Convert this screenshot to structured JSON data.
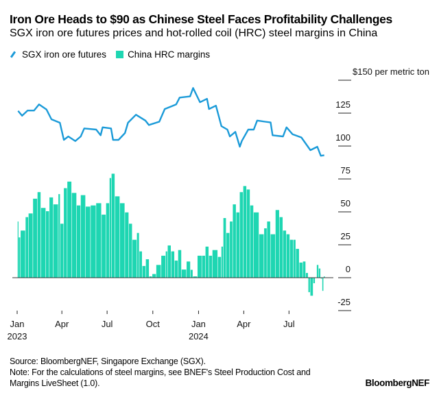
{
  "chart_data": {
    "type": "bar+line",
    "title": "Iron Ore Heads to $90 as Chinese Steel Faces Profitability Challenges",
    "subtitle": "SGX iron ore futures prices and hot-rolled coil (HRC) steel margins in China",
    "ylabel": "$150 per metric ton",
    "ylim": [
      -25,
      150
    ],
    "yticks": [
      150,
      125,
      100,
      75,
      50,
      25,
      0,
      -25
    ],
    "ytick_labels": [
      "$150 per metric ton",
      "125",
      "100",
      "75",
      "50",
      "25",
      "0",
      "-25"
    ],
    "xlim": [
      "2023-01-01",
      "2024-09-30"
    ],
    "xticks": [
      {
        "date": "2023-01-01",
        "label": "Jan",
        "year": "2023"
      },
      {
        "date": "2023-04-01",
        "label": "Apr",
        "year": ""
      },
      {
        "date": "2023-07-01",
        "label": "Jul",
        "year": ""
      },
      {
        "date": "2023-10-01",
        "label": "Oct",
        "year": ""
      },
      {
        "date": "2024-01-01",
        "label": "Jan",
        "year": "2024"
      },
      {
        "date": "2024-04-01",
        "label": "Apr",
        "year": ""
      },
      {
        "date": "2024-07-01",
        "label": "Jul",
        "year": ""
      }
    ],
    "legend_placement": "top-left",
    "grid": false,
    "series": [
      {
        "name": "SGX iron ore futures",
        "type": "line",
        "color": "#1a9ad8",
        "points": [
          [
            "2023-01-03",
            126.7
          ],
          [
            "2023-01-11",
            123
          ],
          [
            "2023-01-22",
            127
          ],
          [
            "2023-02-04",
            127
          ],
          [
            "2023-02-14",
            131.6
          ],
          [
            "2023-03-01",
            127.8
          ],
          [
            "2023-03-11",
            120.3
          ],
          [
            "2023-03-28",
            117.7
          ],
          [
            "2023-04-05",
            104.7
          ],
          [
            "2023-04-14",
            107.3
          ],
          [
            "2023-04-28",
            103.8
          ],
          [
            "2023-05-09",
            107.3
          ],
          [
            "2023-05-16",
            113.4
          ],
          [
            "2023-06-09",
            112.5
          ],
          [
            "2023-06-18",
            108.2
          ],
          [
            "2023-06-22",
            114.2
          ],
          [
            "2023-07-09",
            113.4
          ],
          [
            "2023-07-13",
            104.7
          ],
          [
            "2023-07-24",
            104.7
          ],
          [
            "2023-08-06",
            109.9
          ],
          [
            "2023-08-12",
            117.7
          ],
          [
            "2023-08-28",
            123.8
          ],
          [
            "2023-09-16",
            119.4
          ],
          [
            "2023-09-23",
            116
          ],
          [
            "2023-10-14",
            118.5
          ],
          [
            "2023-10-25",
            128.1
          ],
          [
            "2023-11-17",
            131.6
          ],
          [
            "2023-11-24",
            136.8
          ],
          [
            "2023-12-15",
            137.7
          ],
          [
            "2023-12-21",
            144.1
          ],
          [
            "2024-01-04",
            133.3
          ],
          [
            "2024-01-18",
            135.9
          ],
          [
            "2024-01-22",
            128.1
          ],
          [
            "2024-02-05",
            130.7
          ],
          [
            "2024-02-16",
            115.1
          ],
          [
            "2024-02-28",
            112.5
          ],
          [
            "2024-03-04",
            107.3
          ],
          [
            "2024-03-15",
            110.8
          ],
          [
            "2024-03-24",
            99.5
          ],
          [
            "2024-03-28",
            103.8
          ],
          [
            "2024-04-10",
            112.5
          ],
          [
            "2024-04-21",
            112.5
          ],
          [
            "2024-04-28",
            119.4
          ],
          [
            "2024-05-14",
            118.5
          ],
          [
            "2024-05-25",
            117.9
          ],
          [
            "2024-05-29",
            108.2
          ],
          [
            "2024-06-19",
            107.3
          ],
          [
            "2024-06-26",
            114.2
          ],
          [
            "2024-07-08",
            109
          ],
          [
            "2024-07-26",
            106.5
          ],
          [
            "2024-08-13",
            96.9
          ],
          [
            "2024-08-27",
            99.5
          ],
          [
            "2024-09-03",
            92.6
          ],
          [
            "2024-09-10",
            93
          ]
        ]
      },
      {
        "name": "China HRC margins",
        "type": "bar",
        "color": "#1ed6b2",
        "points": [
          [
            "2023-01-02",
            42.7
          ],
          [
            "2023-01-04",
            30.6
          ],
          [
            "2023-01-08",
            35.8
          ],
          [
            "2023-01-18",
            46
          ],
          [
            "2023-01-24",
            48.8
          ],
          [
            "2023-02-02",
            60
          ],
          [
            "2023-02-11",
            65
          ],
          [
            "2023-02-18",
            53
          ],
          [
            "2023-02-28",
            50.5
          ],
          [
            "2023-03-07",
            61
          ],
          [
            "2023-03-15",
            55.7
          ],
          [
            "2023-03-25",
            63.5
          ],
          [
            "2023-03-29",
            41
          ],
          [
            "2023-04-05",
            68
          ],
          [
            "2023-04-12",
            73
          ],
          [
            "2023-04-21",
            64.4
          ],
          [
            "2023-05-01",
            54.9
          ],
          [
            "2023-05-09",
            62.7
          ],
          [
            "2023-05-19",
            54
          ],
          [
            "2023-05-29",
            54.9
          ],
          [
            "2023-06-09",
            56.6
          ],
          [
            "2023-06-20",
            47.9
          ],
          [
            "2023-06-29",
            56.6
          ],
          [
            "2023-07-06",
            75.7
          ],
          [
            "2023-07-10",
            79
          ],
          [
            "2023-07-17",
            61.8
          ],
          [
            "2023-07-27",
            56.6
          ],
          [
            "2023-08-06",
            49.6
          ],
          [
            "2023-08-14",
            41
          ],
          [
            "2023-08-21",
            28.8
          ],
          [
            "2023-08-30",
            34
          ],
          [
            "2023-09-04",
            20
          ],
          [
            "2023-09-10",
            8.9
          ],
          [
            "2023-09-17",
            14
          ],
          [
            "2023-09-24",
            1
          ],
          [
            "2023-09-30",
            2.8
          ],
          [
            "2023-10-08",
            9.7
          ],
          [
            "2023-10-18",
            16.7
          ],
          [
            "2023-10-27",
            20
          ],
          [
            "2023-10-31",
            24.5
          ],
          [
            "2023-11-07",
            20
          ],
          [
            "2023-11-14",
            13
          ],
          [
            "2023-11-21",
            21
          ],
          [
            "2023-11-28",
            6.2
          ],
          [
            "2023-12-08",
            12.3
          ],
          [
            "2023-12-16",
            6
          ],
          [
            "2023-12-21",
            1
          ],
          [
            "2023-12-30",
            16.7
          ],
          [
            "2024-01-08",
            16.7
          ],
          [
            "2024-01-15",
            23.6
          ],
          [
            "2024-01-22",
            16.7
          ],
          [
            "2024-01-29",
            21
          ],
          [
            "2024-02-09",
            15.8
          ],
          [
            "2024-02-16",
            23.6
          ],
          [
            "2024-02-20",
            45.3
          ],
          [
            "2024-02-26",
            34
          ],
          [
            "2024-03-04",
            42.7
          ],
          [
            "2024-03-10",
            55.7
          ],
          [
            "2024-03-17",
            49.6
          ],
          [
            "2024-03-24",
            65
          ],
          [
            "2024-03-31",
            69.6
          ],
          [
            "2024-04-07",
            67
          ],
          [
            "2024-04-14",
            54.9
          ],
          [
            "2024-04-21",
            49.6
          ],
          [
            "2024-05-02",
            33
          ],
          [
            "2024-05-12",
            37.5
          ],
          [
            "2024-05-18",
            42.7
          ],
          [
            "2024-05-25",
            33
          ],
          [
            "2024-06-04",
            51.4
          ],
          [
            "2024-06-12",
            46
          ],
          [
            "2024-06-19",
            35.8
          ],
          [
            "2024-06-26",
            33
          ],
          [
            "2024-07-03",
            28.8
          ],
          [
            "2024-07-10",
            28.8
          ],
          [
            "2024-07-15",
            21.9
          ],
          [
            "2024-07-22",
            11.5
          ],
          [
            "2024-07-29",
            12.3
          ],
          [
            "2024-08-04",
            3.6
          ],
          [
            "2024-08-09",
            -11
          ],
          [
            "2024-08-13",
            -13.7
          ],
          [
            "2024-08-19",
            -4.2
          ],
          [
            "2024-08-23",
            0
          ],
          [
            "2024-08-26",
            9.7
          ],
          [
            "2024-08-30",
            7
          ],
          [
            "2024-09-03",
            -0.7
          ],
          [
            "2024-09-06",
            -10
          ],
          [
            "2024-09-09",
            1
          ]
        ]
      }
    ]
  },
  "footer": {
    "source": "Source: BloombergNEF, Singapore Exchange (SGX).",
    "note_line1": "Note: For the calculations of steel margins, see BNEF's Steel Production Cost and",
    "note_line2": "Margins LiveSheet (1.0).",
    "logo": "BloombergNEF"
  }
}
